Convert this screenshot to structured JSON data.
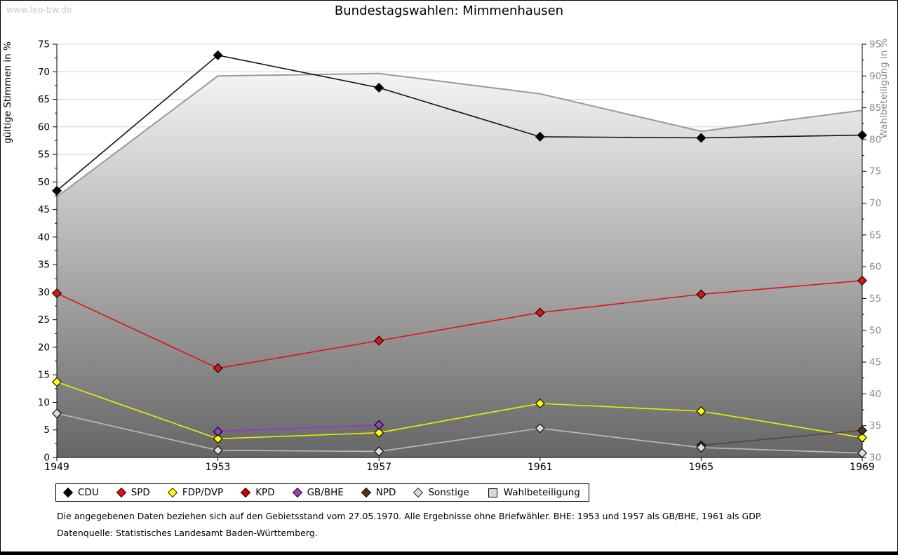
{
  "page": {
    "watermark": "www.leo-bw.de",
    "title": "Bundestagswahlen: Mimmenhausen",
    "footnote1": "Die angegebenen Daten beziehen sich auf den Gebietsstand vom 27.05.1970. Alle Ergebnisse ohne Briefwähler. BHE: 1953 und 1957 als GB/BHE, 1961 als GDP.",
    "footnote2": "Datenquelle: Statistisches Landesamt Baden-Württemberg."
  },
  "chart_data": {
    "type": "line",
    "title": "Bundestagswahlen: Mimmenhausen",
    "x": [
      1949,
      1953,
      1957,
      1961,
      1965,
      1969
    ],
    "axes": {
      "left": {
        "label": "gültige Stimmen in %",
        "min": 0,
        "max": 75,
        "tick_step": 5,
        "minor_step": 2.5
      },
      "right": {
        "label": "Wahlbeteiligung in %",
        "min": 30,
        "max": 95,
        "tick_step": 5,
        "minor_step": 2.5
      }
    },
    "grid": true,
    "legend_position": "bottom-left-box",
    "series": [
      {
        "name": "CDU",
        "render": "line",
        "axis": "left",
        "line_color": "#141414",
        "marker": "diamond",
        "marker_fill": "#000000",
        "values": [
          48.4,
          73.0,
          67.1,
          58.2,
          58.0,
          58.5
        ]
      },
      {
        "name": "SPD",
        "render": "line",
        "axis": "left",
        "line_color": "#dd1414",
        "marker": "diamond",
        "marker_fill": "#e01414",
        "values": [
          29.8,
          16.2,
          21.2,
          26.3,
          29.6,
          32.1
        ]
      },
      {
        "name": "FDP/DVP",
        "render": "line",
        "axis": "left",
        "line_color": "#efef00",
        "marker": "diamond",
        "marker_fill": "#ffff00",
        "values": [
          13.7,
          3.4,
          4.5,
          9.8,
          8.4,
          3.6
        ]
      },
      {
        "name": "KPD",
        "render": "line",
        "axis": "left",
        "line_color": "#c00000",
        "marker": "diamond",
        "marker_fill": "#cc0000",
        "values": [
          null,
          null,
          null,
          null,
          null,
          null
        ]
      },
      {
        "name": "GB/BHE",
        "render": "line",
        "axis": "left",
        "line_color": "#9933cc",
        "marker": "diamond",
        "marker_fill": "#9a3dc2",
        "values": [
          null,
          4.7,
          5.9,
          null,
          null,
          null
        ]
      },
      {
        "name": "NPD",
        "render": "line",
        "axis": "left",
        "line_color": "#5d4433",
        "marker": "diamond",
        "marker_fill": "#53351f",
        "values": [
          null,
          null,
          null,
          null,
          2.2,
          4.9
        ]
      },
      {
        "name": "Sonstige",
        "render": "line",
        "axis": "left",
        "line_color": "#bdbdbd",
        "marker": "diamond",
        "marker_fill": "#dcdcdc",
        "values": [
          8.0,
          1.3,
          1.1,
          5.3,
          1.8,
          0.8
        ]
      },
      {
        "name": "Wahlbeteiligung",
        "render": "area",
        "axis": "right",
        "line_color": "#9a9a9a",
        "marker": "square",
        "marker_fill": "#d9d9d9",
        "fill_top": "#ffffff",
        "fill_bottom": "#666666",
        "values": [
          71.0,
          90.0,
          90.4,
          87.2,
          81.3,
          84.6
        ]
      }
    ]
  }
}
